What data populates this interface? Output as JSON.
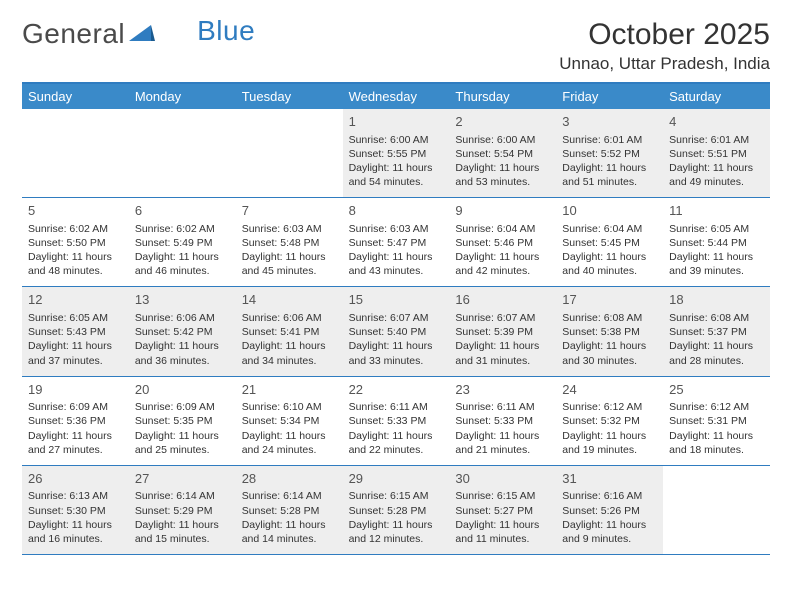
{
  "logo": {
    "word1": "General",
    "word2": "Blue"
  },
  "title": "October 2025",
  "location": "Unnao, Uttar Pradesh, India",
  "colors": {
    "header_bg": "#3a8ac9",
    "border": "#2f7cc0",
    "shade": "#eeeeee",
    "text": "#333333"
  },
  "days": [
    "Sunday",
    "Monday",
    "Tuesday",
    "Wednesday",
    "Thursday",
    "Friday",
    "Saturday"
  ],
  "weeks": [
    [
      null,
      null,
      null,
      {
        "n": "1",
        "sr": "Sunrise: 6:00 AM",
        "ss": "Sunset: 5:55 PM",
        "dl": "Daylight: 11 hours and 54 minutes."
      },
      {
        "n": "2",
        "sr": "Sunrise: 6:00 AM",
        "ss": "Sunset: 5:54 PM",
        "dl": "Daylight: 11 hours and 53 minutes."
      },
      {
        "n": "3",
        "sr": "Sunrise: 6:01 AM",
        "ss": "Sunset: 5:52 PM",
        "dl": "Daylight: 11 hours and 51 minutes."
      },
      {
        "n": "4",
        "sr": "Sunrise: 6:01 AM",
        "ss": "Sunset: 5:51 PM",
        "dl": "Daylight: 11 hours and 49 minutes."
      }
    ],
    [
      {
        "n": "5",
        "sr": "Sunrise: 6:02 AM",
        "ss": "Sunset: 5:50 PM",
        "dl": "Daylight: 11 hours and 48 minutes."
      },
      {
        "n": "6",
        "sr": "Sunrise: 6:02 AM",
        "ss": "Sunset: 5:49 PM",
        "dl": "Daylight: 11 hours and 46 minutes."
      },
      {
        "n": "7",
        "sr": "Sunrise: 6:03 AM",
        "ss": "Sunset: 5:48 PM",
        "dl": "Daylight: 11 hours and 45 minutes."
      },
      {
        "n": "8",
        "sr": "Sunrise: 6:03 AM",
        "ss": "Sunset: 5:47 PM",
        "dl": "Daylight: 11 hours and 43 minutes."
      },
      {
        "n": "9",
        "sr": "Sunrise: 6:04 AM",
        "ss": "Sunset: 5:46 PM",
        "dl": "Daylight: 11 hours and 42 minutes."
      },
      {
        "n": "10",
        "sr": "Sunrise: 6:04 AM",
        "ss": "Sunset: 5:45 PM",
        "dl": "Daylight: 11 hours and 40 minutes."
      },
      {
        "n": "11",
        "sr": "Sunrise: 6:05 AM",
        "ss": "Sunset: 5:44 PM",
        "dl": "Daylight: 11 hours and 39 minutes."
      }
    ],
    [
      {
        "n": "12",
        "sr": "Sunrise: 6:05 AM",
        "ss": "Sunset: 5:43 PM",
        "dl": "Daylight: 11 hours and 37 minutes."
      },
      {
        "n": "13",
        "sr": "Sunrise: 6:06 AM",
        "ss": "Sunset: 5:42 PM",
        "dl": "Daylight: 11 hours and 36 minutes."
      },
      {
        "n": "14",
        "sr": "Sunrise: 6:06 AM",
        "ss": "Sunset: 5:41 PM",
        "dl": "Daylight: 11 hours and 34 minutes."
      },
      {
        "n": "15",
        "sr": "Sunrise: 6:07 AM",
        "ss": "Sunset: 5:40 PM",
        "dl": "Daylight: 11 hours and 33 minutes."
      },
      {
        "n": "16",
        "sr": "Sunrise: 6:07 AM",
        "ss": "Sunset: 5:39 PM",
        "dl": "Daylight: 11 hours and 31 minutes."
      },
      {
        "n": "17",
        "sr": "Sunrise: 6:08 AM",
        "ss": "Sunset: 5:38 PM",
        "dl": "Daylight: 11 hours and 30 minutes."
      },
      {
        "n": "18",
        "sr": "Sunrise: 6:08 AM",
        "ss": "Sunset: 5:37 PM",
        "dl": "Daylight: 11 hours and 28 minutes."
      }
    ],
    [
      {
        "n": "19",
        "sr": "Sunrise: 6:09 AM",
        "ss": "Sunset: 5:36 PM",
        "dl": "Daylight: 11 hours and 27 minutes."
      },
      {
        "n": "20",
        "sr": "Sunrise: 6:09 AM",
        "ss": "Sunset: 5:35 PM",
        "dl": "Daylight: 11 hours and 25 minutes."
      },
      {
        "n": "21",
        "sr": "Sunrise: 6:10 AM",
        "ss": "Sunset: 5:34 PM",
        "dl": "Daylight: 11 hours and 24 minutes."
      },
      {
        "n": "22",
        "sr": "Sunrise: 6:11 AM",
        "ss": "Sunset: 5:33 PM",
        "dl": "Daylight: 11 hours and 22 minutes."
      },
      {
        "n": "23",
        "sr": "Sunrise: 6:11 AM",
        "ss": "Sunset: 5:33 PM",
        "dl": "Daylight: 11 hours and 21 minutes."
      },
      {
        "n": "24",
        "sr": "Sunrise: 6:12 AM",
        "ss": "Sunset: 5:32 PM",
        "dl": "Daylight: 11 hours and 19 minutes."
      },
      {
        "n": "25",
        "sr": "Sunrise: 6:12 AM",
        "ss": "Sunset: 5:31 PM",
        "dl": "Daylight: 11 hours and 18 minutes."
      }
    ],
    [
      {
        "n": "26",
        "sr": "Sunrise: 6:13 AM",
        "ss": "Sunset: 5:30 PM",
        "dl": "Daylight: 11 hours and 16 minutes."
      },
      {
        "n": "27",
        "sr": "Sunrise: 6:14 AM",
        "ss": "Sunset: 5:29 PM",
        "dl": "Daylight: 11 hours and 15 minutes."
      },
      {
        "n": "28",
        "sr": "Sunrise: 6:14 AM",
        "ss": "Sunset: 5:28 PM",
        "dl": "Daylight: 11 hours and 14 minutes."
      },
      {
        "n": "29",
        "sr": "Sunrise: 6:15 AM",
        "ss": "Sunset: 5:28 PM",
        "dl": "Daylight: 11 hours and 12 minutes."
      },
      {
        "n": "30",
        "sr": "Sunrise: 6:15 AM",
        "ss": "Sunset: 5:27 PM",
        "dl": "Daylight: 11 hours and 11 minutes."
      },
      {
        "n": "31",
        "sr": "Sunrise: 6:16 AM",
        "ss": "Sunset: 5:26 PM",
        "dl": "Daylight: 11 hours and 9 minutes."
      },
      null
    ]
  ]
}
